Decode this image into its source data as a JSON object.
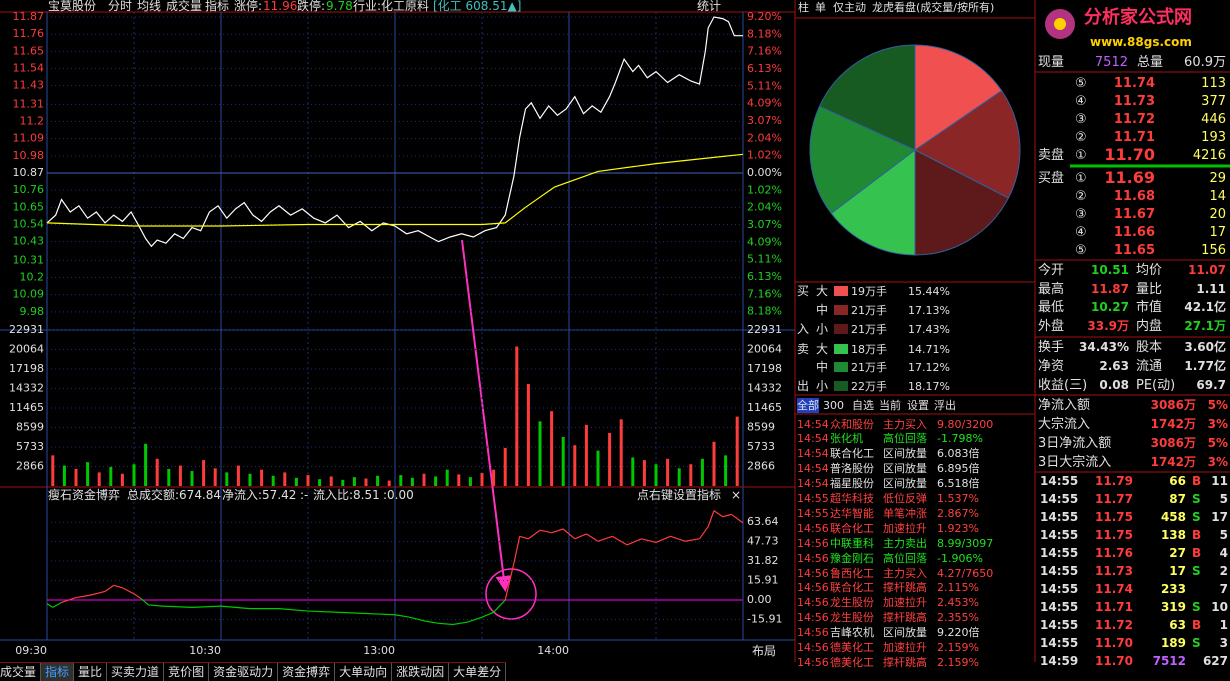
{
  "header": {
    "stock": "宝莫股份",
    "tabs": [
      "分时",
      "均线",
      "成交量",
      "指标"
    ],
    "limit_up_label": "涨停:",
    "limit_up": "11.96",
    "limit_down_label": "跌停:",
    "limit_down": "9.78",
    "industry": "行业:化工原料",
    "index": "[化工 608.51▲]",
    "stats": "统计"
  },
  "chart_data": [
    {
      "type": "line",
      "xlim": [
        0,
        240
      ],
      "xticks": [
        {
          "value": 0,
          "label": "09:30"
        },
        {
          "value": 60,
          "label": "10:30"
        },
        {
          "value": 120,
          "label": "13:00"
        },
        {
          "value": 180,
          "label": "14:00"
        }
      ],
      "ylim": [
        9.87,
        11.87
      ],
      "yticks": [
        11.87,
        11.76,
        11.65,
        11.54,
        11.43,
        11.31,
        11.2,
        11.09,
        10.98,
        10.87,
        10.76,
        10.65,
        10.54,
        10.43,
        10.31,
        10.2,
        10.09,
        9.98
      ],
      "y2lim": [
        -9.2,
        9.2
      ],
      "y2ticks": [
        {
          "value": 9.2,
          "label": "9.20%"
        },
        {
          "value": 8.18,
          "label": "8.18%"
        },
        {
          "value": 7.16,
          "label": "7.16%"
        },
        {
          "value": 6.13,
          "label": "6.13%"
        },
        {
          "value": 5.11,
          "label": "5.11%"
        },
        {
          "value": 4.09,
          "label": "4.09%"
        },
        {
          "value": 3.07,
          "label": "3.07%"
        },
        {
          "value": 2.04,
          "label": "2.04%"
        },
        {
          "value": 1.02,
          "label": "1.02%"
        },
        {
          "value": 0,
          "label": "0.00%"
        },
        {
          "value": -1.02,
          "label": "1.02%"
        },
        {
          "value": -2.04,
          "label": "2.04%"
        },
        {
          "value": -3.07,
          "label": "3.07%"
        },
        {
          "value": -4.09,
          "label": "4.09%"
        },
        {
          "value": -5.11,
          "label": "5.11%"
        },
        {
          "value": -6.13,
          "label": "6.13%"
        },
        {
          "value": -7.16,
          "label": "7.16%"
        },
        {
          "value": -8.18,
          "label": "8.18%"
        }
      ],
      "reference": 10.87,
      "grid": true,
      "series": [
        {
          "color": "#ffffff",
          "x": [
            0,
            3,
            5,
            8,
            11,
            14,
            17,
            20,
            23,
            26,
            29,
            32,
            34,
            36,
            38,
            41,
            44,
            47,
            50,
            53,
            56,
            59,
            62,
            65,
            68,
            71,
            74,
            77,
            80,
            84,
            88,
            92,
            96,
            100,
            104,
            108,
            112,
            116,
            120,
            124,
            128,
            132,
            135,
            139,
            143,
            147,
            151,
            155,
            158,
            161,
            163,
            165,
            167,
            170,
            173,
            176,
            179,
            182,
            185,
            188,
            191,
            194,
            196,
            199,
            202,
            204,
            207,
            210,
            214,
            218,
            222,
            225,
            227,
            228,
            230,
            233,
            235,
            237,
            240
          ],
          "values": [
            10.55,
            10.6,
            10.7,
            10.62,
            10.66,
            10.58,
            10.62,
            10.55,
            10.6,
            10.56,
            10.62,
            10.52,
            10.45,
            10.4,
            10.44,
            10.42,
            10.48,
            10.45,
            10.52,
            10.5,
            10.62,
            10.66,
            10.58,
            10.64,
            10.68,
            10.6,
            10.56,
            10.62,
            10.66,
            10.6,
            10.64,
            10.58,
            10.55,
            10.6,
            10.52,
            10.56,
            10.5,
            10.55,
            10.53,
            10.48,
            10.5,
            10.46,
            10.43,
            10.46,
            10.48,
            10.46,
            10.5,
            10.52,
            10.6,
            10.85,
            11.1,
            11.28,
            11.32,
            11.22,
            11.3,
            11.24,
            11.28,
            11.36,
            11.25,
            11.3,
            11.26,
            11.36,
            11.45,
            11.6,
            11.52,
            11.56,
            11.48,
            11.52,
            11.45,
            11.5,
            11.46,
            11.44,
            11.65,
            11.8,
            11.87,
            11.86,
            11.84,
            11.75,
            11.75
          ]
        },
        {
          "color": "#ffff00",
          "x": [
            0,
            30,
            60,
            90,
            120,
            150,
            158,
            165,
            175,
            190,
            210,
            230,
            240
          ],
          "values": [
            10.55,
            10.53,
            10.53,
            10.54,
            10.54,
            10.54,
            10.55,
            10.65,
            10.78,
            10.88,
            10.93,
            10.97,
            10.99
          ]
        }
      ]
    },
    {
      "type": "bar",
      "xlim": [
        0,
        240
      ],
      "ylim": [
        0,
        22931
      ],
      "yticks": [
        2866,
        5733,
        8599,
        11465,
        14332,
        17198,
        20064,
        22931
      ],
      "x": [
        2,
        6,
        10,
        14,
        18,
        22,
        26,
        30,
        34,
        38,
        42,
        46,
        50,
        54,
        58,
        62,
        66,
        70,
        74,
        78,
        82,
        86,
        90,
        94,
        98,
        102,
        106,
        110,
        114,
        118,
        122,
        126,
        130,
        134,
        138,
        142,
        146,
        150,
        154,
        158,
        162,
        166,
        170,
        174,
        178,
        182,
        186,
        190,
        194,
        198,
        202,
        206,
        210,
        214,
        218,
        222,
        226,
        230,
        234,
        238
      ],
      "values": [
        4500,
        3000,
        2500,
        3500,
        2000,
        2800,
        1800,
        3200,
        6200,
        4000,
        2500,
        3000,
        2200,
        3800,
        2600,
        2000,
        3000,
        1800,
        2400,
        1500,
        2000,
        1200,
        1600,
        1000,
        1400,
        900,
        1300,
        1100,
        1500,
        800,
        1600,
        1200,
        1800,
        1400,
        2400,
        1700,
        1300,
        1900,
        2400,
        5600,
        20500,
        15000,
        9500,
        11000,
        7200,
        6000,
        9000,
        5200,
        7800,
        9800,
        4200,
        3800,
        3200,
        4000,
        2600,
        3200,
        4000,
        6500,
        4500,
        10200
      ],
      "colors": [
        "#ff3c3c",
        "#00c800",
        "#ff3c3c",
        "#00c800",
        "#ff3c3c",
        "#00c800",
        "#ff3c3c",
        "#00c800",
        "#00c800",
        "#ff3c3c",
        "#00c800",
        "#ff3c3c",
        "#00c800",
        "#ff3c3c",
        "#ff3c3c",
        "#00c800",
        "#ff3c3c",
        "#00c800",
        "#ff3c3c",
        "#00c800",
        "#ff3c3c",
        "#00c800",
        "#ff3c3c",
        "#00c800",
        "#ff3c3c",
        "#00c800",
        "#00c800",
        "#ff3c3c",
        "#00c800",
        "#ff3c3c",
        "#00c800",
        "#00c800",
        "#ff3c3c",
        "#00c800",
        "#00c800",
        "#ff3c3c",
        "#00c800",
        "#ff3c3c",
        "#ff3c3c",
        "#ff3c3c",
        "#ff3c3c",
        "#ff3c3c",
        "#00c800",
        "#ff3c3c",
        "#00c800",
        "#ff3c3c",
        "#ff3c3c",
        "#00c800",
        "#ff3c3c",
        "#ff3c3c",
        "#00c800",
        "#ff3c3c",
        "#00c800",
        "#ff3c3c",
        "#00c800",
        "#ff3c3c",
        "#00c800",
        "#ff3c3c",
        "#00c800",
        "#ff3c3c"
      ]
    },
    {
      "type": "line",
      "xlim": [
        0,
        240
      ],
      "ylim": [
        -31.82,
        79.55
      ],
      "yticks": [
        63.64,
        47.73,
        31.82,
        15.91,
        {
          "value": 0,
          "label": "0.00"
        },
        -15.91
      ],
      "reference": 0,
      "up_color": "#ff3c3c",
      "down_color": "#00c800",
      "reference_color": "#ff00ff",
      "x": [
        0,
        2,
        5,
        10,
        15,
        20,
        23,
        26,
        30,
        32,
        35,
        40,
        50,
        60,
        70,
        80,
        90,
        100,
        110,
        120,
        125,
        130,
        135,
        140,
        145,
        150,
        154,
        158,
        161,
        163,
        166,
        170,
        174,
        178,
        182,
        186,
        190,
        195,
        200,
        205,
        210,
        215,
        220,
        225,
        228,
        230,
        233,
        236,
        240
      ],
      "values": [
        -3,
        -6,
        -2,
        2,
        4,
        7,
        12,
        10,
        5,
        2,
        -4,
        -5,
        -6,
        -5,
        -7,
        -7,
        -9,
        -10,
        -11,
        -12,
        -14,
        -17,
        -19,
        -20,
        -18,
        -14,
        -10,
        0,
        30,
        52,
        50,
        57,
        55,
        58,
        50,
        54,
        48,
        52,
        45,
        50,
        47,
        52,
        48,
        50,
        60,
        73,
        68,
        70,
        63
      ]
    },
    {
      "type": "pie",
      "categories": [
        "大",
        "中",
        "小",
        "大",
        "中",
        "小"
      ],
      "amounts": [
        "19万手",
        "21万手",
        "21万手",
        "18万手",
        "21万手",
        "22万手"
      ],
      "values": [
        15.44,
        17.13,
        17.43,
        14.71,
        17.12,
        18.17
      ],
      "value_labels": [
        "15.44%",
        "17.13%",
        "17.43%",
        "14.71%",
        "17.12%",
        "18.17%"
      ],
      "colors": [
        "#f05050",
        "#8a2626",
        "#5e1a1a",
        "#35c24f",
        "#1f8a33",
        "#175a22"
      ]
    }
  ],
  "flow_header": {
    "title": "瘦石资金博弈",
    "total": "总成交额:674.84",
    "net": "净流入:57.42",
    "sep": ":-",
    "ratio": "流入比:8.51",
    "zero": ":0.00",
    "hint": "点右键设置指标",
    "close": "×"
  },
  "bottom_tabs": [
    "成交量",
    "指标",
    "量比",
    "买卖力道",
    "竞价图",
    "资金驱动力",
    "资金搏弈",
    "大单动向",
    "涨跌动因",
    "大单差分"
  ],
  "layout_button": "布局",
  "pie_tabs": [
    "柱",
    "单",
    "仅主动",
    "龙虎看盘(成交量/按所有)"
  ],
  "pie_side": [
    "买",
    "入",
    "卖",
    "出"
  ],
  "news_tabs": [
    "全部",
    "300",
    "自选",
    "当前",
    "设置",
    "浮出"
  ],
  "news": [
    {
      "time": "14:54",
      "name": "众和股份",
      "event": "主力买入",
      "detail": "9.80/3200",
      "color": "#ff4040"
    },
    {
      "time": "14:54",
      "name": "张化机",
      "event": "高位回落",
      "detail": "-1.798%",
      "color": "#20e020"
    },
    {
      "time": "14:54",
      "name": "联合化工",
      "event": "区间放量",
      "detail": "6.083倍",
      "color": "#e0e0e0"
    },
    {
      "time": "14:54",
      "name": "普洛股份",
      "event": "区间放量",
      "detail": "6.895倍",
      "color": "#e0e0e0"
    },
    {
      "time": "14:54",
      "name": "福星股份",
      "event": "区间放量",
      "detail": "6.518倍",
      "color": "#e0e0e0"
    },
    {
      "time": "14:55",
      "name": "超华科技",
      "event": "低位反弹",
      "detail": "1.537%",
      "color": "#ff4040"
    },
    {
      "time": "14:55",
      "name": "达华智能",
      "event": "单笔冲涨",
      "detail": "2.867%",
      "color": "#ff4040"
    },
    {
      "time": "14:56",
      "name": "联合化工",
      "event": "加速拉升",
      "detail": "1.923%",
      "color": "#ff4040"
    },
    {
      "time": "14:56",
      "name": "中联重科",
      "event": "主力卖出",
      "detail": "8.99/3097",
      "color": "#20e020"
    },
    {
      "time": "14:56",
      "name": "豫金刚石",
      "event": "高位回落",
      "detail": "-1.906%",
      "color": "#20e020"
    },
    {
      "time": "14:56",
      "name": "鲁西化工",
      "event": "主力买入",
      "detail": "4.27/7650",
      "color": "#ff4040"
    },
    {
      "time": "14:56",
      "name": "联合化工",
      "event": "撑杆跳高",
      "detail": "2.115%",
      "color": "#ff4040"
    },
    {
      "time": "14:56",
      "name": "龙生股份",
      "event": "加速拉升",
      "detail": "2.453%",
      "color": "#ff4040"
    },
    {
      "time": "14:56",
      "name": "龙生股份",
      "event": "撑杆跳高",
      "detail": "2.355%",
      "color": "#ff4040"
    },
    {
      "time": "14:56",
      "name": "吉峰农机",
      "event": "区间放量",
      "detail": "9.220倍",
      "color": "#e0e0e0"
    },
    {
      "time": "14:56",
      "name": "德美化工",
      "event": "加速拉升",
      "detail": "2.159%",
      "color": "#ff4040"
    },
    {
      "time": "14:56",
      "name": "德美化工",
      "event": "撑杆跳高",
      "detail": "2.159%",
      "color": "#ff4040"
    }
  ],
  "logo": {
    "title": "分析家公式网",
    "url": "www.88gs.com"
  },
  "quote": {
    "volume_row": [
      "现量",
      "7512",
      "总量",
      "60.9万"
    ],
    "asks": [
      [
        "⑤",
        "11.74",
        "113"
      ],
      [
        "④",
        "11.73",
        "377"
      ],
      [
        "③",
        "11.72",
        "446"
      ],
      [
        "②",
        "11.71",
        "193"
      ]
    ],
    "ask1": [
      "卖盘",
      "①",
      "11.70",
      "4216"
    ],
    "bid1": [
      "买盘",
      "①",
      "11.69",
      "29"
    ],
    "bids": [
      [
        "②",
        "11.68",
        "14"
      ],
      [
        "③",
        "11.67",
        "20"
      ],
      [
        "④",
        "11.66",
        "17"
      ],
      [
        "⑤",
        "11.65",
        "156"
      ]
    ],
    "stats": [
      [
        "今开",
        "10.51",
        "均价",
        "11.07"
      ],
      [
        "最高",
        "11.87",
        "量比",
        "1.11"
      ],
      [
        "最低",
        "10.27",
        "市值",
        "42.1亿"
      ],
      [
        "外盘",
        "33.9万",
        "内盘",
        "27.1万"
      ],
      [
        "换手",
        "34.43%",
        "股本",
        "3.60亿"
      ],
      [
        "净资",
        "2.63",
        "流通",
        "1.77亿"
      ],
      [
        "收益(三)",
        "0.08",
        "PE(动)",
        "69.7"
      ]
    ],
    "flows": [
      [
        "净流入额",
        "3086万",
        "5%"
      ],
      [
        "大宗流入",
        "1742万",
        "3%"
      ],
      [
        "3日净流入额",
        "3086万",
        "5%"
      ],
      [
        "3日大宗流入",
        "1742万",
        "3%"
      ]
    ],
    "trades": [
      [
        "14:55",
        "11.79",
        "66",
        "B",
        "11"
      ],
      [
        "14:55",
        "11.77",
        "87",
        "S",
        "5"
      ],
      [
        "14:55",
        "11.75",
        "458",
        "S",
        "17"
      ],
      [
        "14:55",
        "11.75",
        "138",
        "B",
        "5"
      ],
      [
        "14:55",
        "11.76",
        "27",
        "B",
        "4"
      ],
      [
        "14:55",
        "11.73",
        "17",
        "S",
        "2"
      ],
      [
        "14:55",
        "11.74",
        "233",
        null,
        "7"
      ],
      [
        "14:55",
        "11.71",
        "319",
        "S",
        "10"
      ],
      [
        "14:55",
        "11.72",
        "63",
        "B",
        "1"
      ],
      [
        "14:55",
        "11.70",
        "189",
        "S",
        "3"
      ],
      [
        "14:59",
        "11.70",
        "7512",
        null,
        "627"
      ]
    ]
  }
}
